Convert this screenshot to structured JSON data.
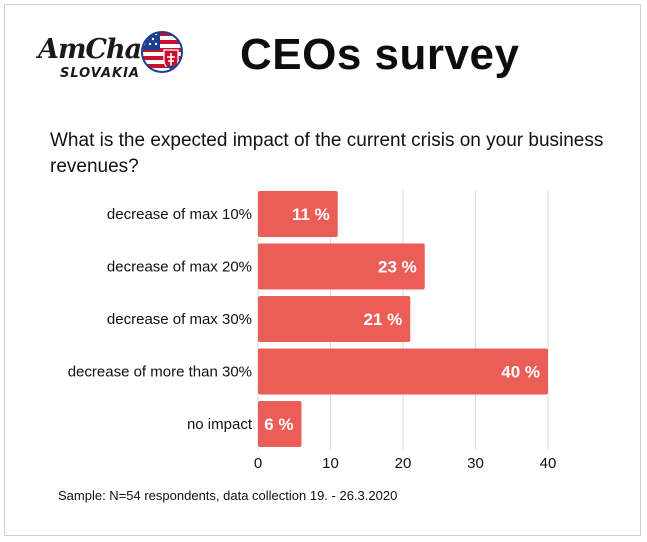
{
  "header": {
    "logo_line1": "AmCham",
    "logo_line2": "SLOVAKIA",
    "title": "CEOs survey"
  },
  "question": "What is the expected impact of the current crisis on your business revenues?",
  "footnote": "Sample: N=54 respondents, data collection 19. - 26.3.2020",
  "colors": {
    "bar": "#eb5e57",
    "grid": "#d9d9d9",
    "label": "#ffffff"
  },
  "chart_data": {
    "type": "bar",
    "orientation": "horizontal",
    "categories": [
      "decrease of max 10%",
      "decrease of max 20%",
      "decrease of max 30%",
      "decrease of more than 30%",
      "no impact"
    ],
    "values": [
      11,
      23,
      21,
      40,
      6
    ],
    "data_labels": [
      "11 %",
      "23 %",
      "21 %",
      "40 %",
      "6 %"
    ],
    "x_ticks": [
      0,
      10,
      20,
      30,
      40
    ],
    "xlim": [
      0,
      45
    ],
    "grid": true
  }
}
